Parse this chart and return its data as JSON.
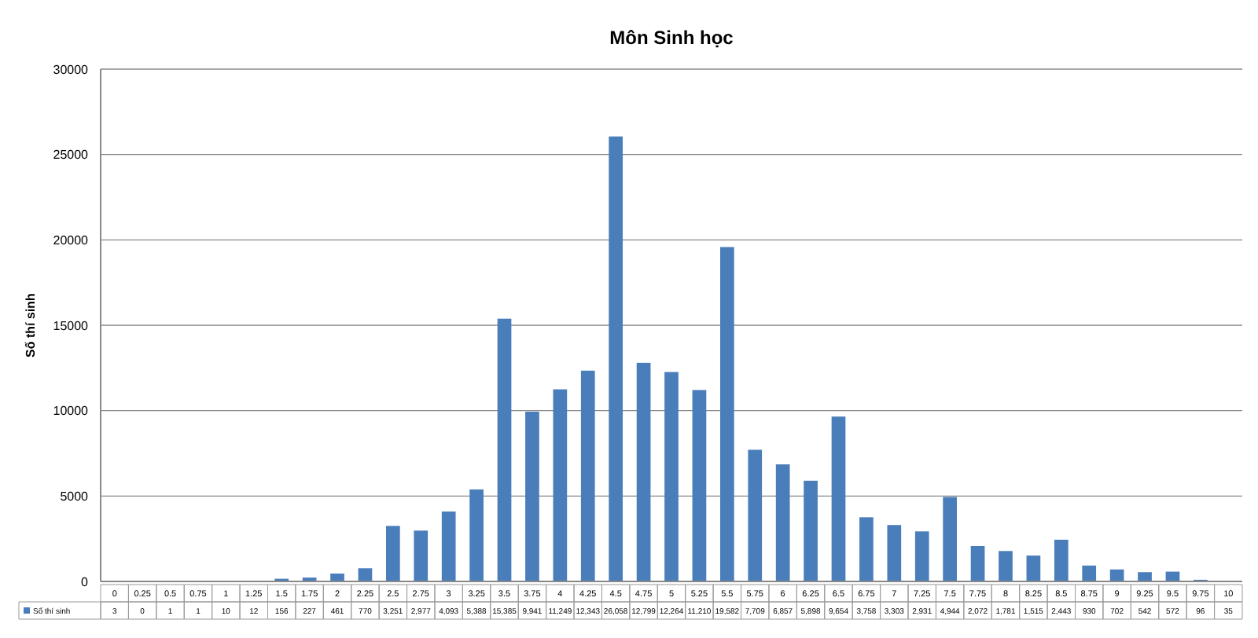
{
  "chart_data": {
    "type": "bar",
    "title": "Môn Sinh học",
    "ylabel": "Số thí sinh",
    "categories": [
      "0",
      "0.25",
      "0.5",
      "0.75",
      "1",
      "1.25",
      "1.5",
      "1.75",
      "2",
      "2.25",
      "2.5",
      "2.75",
      "3",
      "3.25",
      "3.5",
      "3.75",
      "4",
      "4.25",
      "4.5",
      "4.75",
      "5",
      "5.25",
      "5.5",
      "5.75",
      "6",
      "6.25",
      "6.5",
      "6.75",
      "7",
      "7.25",
      "7.5",
      "7.75",
      "8",
      "8.25",
      "8.5",
      "8.75",
      "9",
      "9.25",
      "9.5",
      "9.75",
      "10"
    ],
    "series": [
      {
        "name": "Số thí sinh",
        "color": "#4a7ebb",
        "values": [
          3,
          0,
          1,
          1,
          10,
          12,
          156,
          227,
          461,
          770,
          3251,
          2977,
          4093,
          5388,
          15385,
          9941,
          11249,
          12343,
          26058,
          12799,
          12264,
          11210,
          19582,
          7709,
          6857,
          5898,
          9654,
          3758,
          3303,
          2931,
          4944,
          2072,
          1781,
          1515,
          2443,
          930,
          702,
          542,
          572,
          96,
          35
        ],
        "value_labels": [
          "3",
          "0",
          "1",
          "1",
          "10",
          "12",
          "156",
          "227",
          "461",
          "770",
          "3,251",
          "2,977",
          "4,093",
          "5,388",
          "15,385",
          "9,941",
          "11,249",
          "12,343",
          "26,058",
          "12,799",
          "12,264",
          "11,210",
          "19,582",
          "7,709",
          "6,857",
          "5,898",
          "9,654",
          "3,758",
          "3,303",
          "2,931",
          "4,944",
          "2,072",
          "1,781",
          "1,515",
          "2,443",
          "930",
          "702",
          "542",
          "572",
          "96",
          "35"
        ]
      }
    ],
    "ylim": [
      0,
      30000
    ],
    "yticks": [
      0,
      5000,
      10000,
      15000,
      20000,
      25000,
      30000
    ],
    "grid": "y",
    "legend": "bottom"
  }
}
